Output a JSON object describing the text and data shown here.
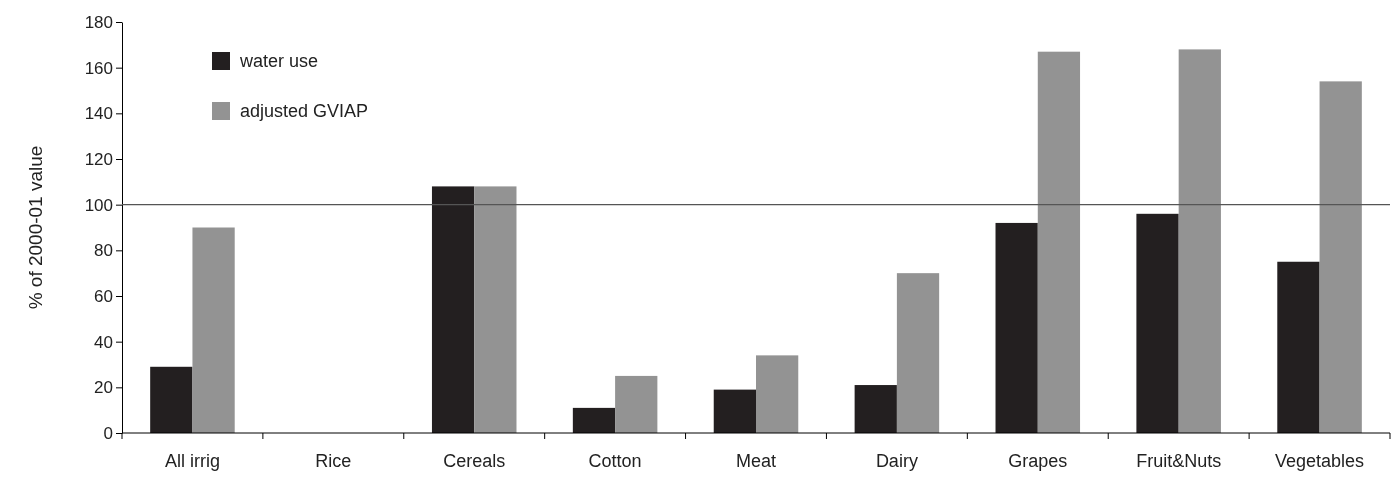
{
  "chart_data": {
    "type": "bar",
    "ylabel": "% of 2000-01 value",
    "categories": [
      "All irrig",
      "Rice",
      "Cereals",
      "Cotton",
      "Meat",
      "Dairy",
      "Grapes",
      "Fruit&Nuts",
      "Vegetables"
    ],
    "series": [
      {
        "name": "water use",
        "color": "#231f20",
        "values": [
          29,
          0,
          108,
          11,
          19,
          21,
          92,
          96,
          75
        ]
      },
      {
        "name": "adjusted GVIAP",
        "color": "#939393",
        "values": [
          90,
          0,
          108,
          25,
          34,
          70,
          167,
          168,
          154
        ]
      }
    ],
    "ylim": [
      0,
      180
    ],
    "yticks": [
      0,
      20,
      40,
      60,
      80,
      100,
      120,
      140,
      160,
      180
    ],
    "grid": false,
    "legend": "top left",
    "ref_lines": [
      {
        "axis": "y",
        "value": 100,
        "label": null,
        "color": "#555555"
      }
    ]
  }
}
